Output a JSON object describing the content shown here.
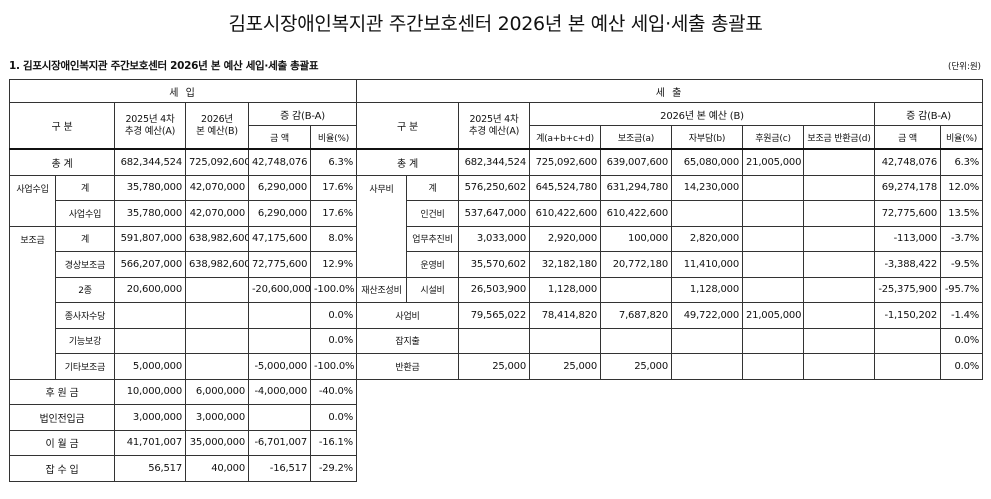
{
  "title": "김포시장애인복지관 주간보호센터 2026년 본 예산 세입·세출 총괄표",
  "subtitle": "1. 김포시장애인복지관 주간보호센터 2026년 본 예산 세입·세출 총괄표",
  "unit": "(단위:원)",
  "income": {
    "header": "세 입",
    "col_category": "구 분",
    "col_prev": "2025년 4차 추경 예산(A)",
    "col_prev_l1": "2025년 4차",
    "col_prev_l2": "추경 예산(A)",
    "col_cur_l1": "2026년",
    "col_cur_l2": "본 예산(B)",
    "col_diff": "증 감(B-A)",
    "col_amount": "금 액",
    "col_ratio": "비율(%)",
    "rows": [
      {
        "g": "총 계",
        "s": "",
        "a": "682,344,524",
        "b": "725,092,600",
        "d": "42,748,076",
        "p": "6.3%"
      },
      {
        "g": "사업수입",
        "s": "계",
        "a": "35,780,000",
        "b": "42,070,000",
        "d": "6,290,000",
        "p": "17.6%"
      },
      {
        "g": "",
        "s": "사업수입",
        "a": "35,780,000",
        "b": "42,070,000",
        "d": "6,290,000",
        "p": "17.6%"
      },
      {
        "g": "보조금",
        "s": "계",
        "a": "591,807,000",
        "b": "638,982,600",
        "d": "47,175,600",
        "p": "8.0%"
      },
      {
        "g": "",
        "s": "경상보조금",
        "a": "566,207,000",
        "b": "638,982,600",
        "d": "72,775,600",
        "p": "12.9%"
      },
      {
        "g": "",
        "s": "2종",
        "a": "20,600,000",
        "b": "",
        "d": "-20,600,000",
        "p": "-100.0%"
      },
      {
        "g": "",
        "s": "종사자수당",
        "a": "",
        "b": "",
        "d": "",
        "p": "0.0%"
      },
      {
        "g": "",
        "s": "기능보강",
        "a": "",
        "b": "",
        "d": "",
        "p": "0.0%"
      },
      {
        "g": "",
        "s": "기타보조금",
        "a": "5,000,000",
        "b": "",
        "d": "-5,000,000",
        "p": "-100.0%"
      },
      {
        "g": "후 원 금",
        "s": "",
        "a": "10,000,000",
        "b": "6,000,000",
        "d": "-4,000,000",
        "p": "-40.0%"
      },
      {
        "g": "법인전입금",
        "s": "",
        "a": "3,000,000",
        "b": "3,000,000",
        "d": "",
        "p": "0.0%"
      },
      {
        "g": "이 월 금",
        "s": "",
        "a": "41,701,007",
        "b": "35,000,000",
        "d": "-6,701,007",
        "p": "-16.1%"
      },
      {
        "g": "잡 수 입",
        "s": "",
        "a": "56,517",
        "b": "40,000",
        "d": "-16,517",
        "p": "-29.2%"
      }
    ]
  },
  "expense": {
    "header": "세 출",
    "col_category": "구 분",
    "col_prev_l1": "2025년 4차",
    "col_prev_l2": "추경 예산(A)",
    "col_cur": "2026년 본 예산 (B)",
    "col_total": "계(a+b+c+d)",
    "col_sub": "보조금(a)",
    "col_self": "자부담(b)",
    "col_donation": "후원금(c)",
    "col_return": "보조금 반환금(d)",
    "col_diff": "증 감(B-A)",
    "col_amount": "금 액",
    "col_ratio": "비율(%)",
    "rows": [
      {
        "g": "총 계",
        "s": "",
        "a": "682,344,524",
        "t": "725,092,600",
        "sa": "639,007,600",
        "sb": "65,080,000",
        "sc": "21,005,000",
        "sd": "",
        "d": "42,748,076",
        "p": "6.3%"
      },
      {
        "g": "사무비",
        "s": "계",
        "a": "576,250,602",
        "t": "645,524,780",
        "sa": "631,294,780",
        "sb": "14,230,000",
        "sc": "",
        "sd": "",
        "d": "69,274,178",
        "p": "12.0%"
      },
      {
        "g": "",
        "s": "인건비",
        "a": "537,647,000",
        "t": "610,422,600",
        "sa": "610,422,600",
        "sb": "",
        "sc": "",
        "sd": "",
        "d": "72,775,600",
        "p": "13.5%"
      },
      {
        "g": "",
        "s": "업무추진비",
        "a": "3,033,000",
        "t": "2,920,000",
        "sa": "100,000",
        "sb": "2,820,000",
        "sc": "",
        "sd": "",
        "d": "-113,000",
        "p": "-3.7%"
      },
      {
        "g": "",
        "s": "운영비",
        "a": "35,570,602",
        "t": "32,182,180",
        "sa": "20,772,180",
        "sb": "11,410,000",
        "sc": "",
        "sd": "",
        "d": "-3,388,422",
        "p": "-9.5%"
      },
      {
        "g": "재산조성비",
        "s": "시설비",
        "a": "26,503,900",
        "t": "1,128,000",
        "sa": "",
        "sb": "1,128,000",
        "sc": "",
        "sd": "",
        "d": "-25,375,900",
        "p": "-95.7%"
      },
      {
        "g": "사업비",
        "s": "",
        "a": "79,565,022",
        "t": "78,414,820",
        "sa": "7,687,820",
        "sb": "49,722,000",
        "sc": "21,005,000",
        "sd": "",
        "d": "-1,150,202",
        "p": "-1.4%"
      },
      {
        "g": "잡지출",
        "s": "",
        "a": "",
        "t": "",
        "sa": "",
        "sb": "",
        "sc": "",
        "sd": "",
        "d": "",
        "p": "0.0%"
      },
      {
        "g": "반환금",
        "s": "",
        "a": "25,000",
        "t": "25,000",
        "sa": "25,000",
        "sb": "",
        "sc": "",
        "sd": "",
        "d": "",
        "p": "0.0%"
      }
    ]
  }
}
